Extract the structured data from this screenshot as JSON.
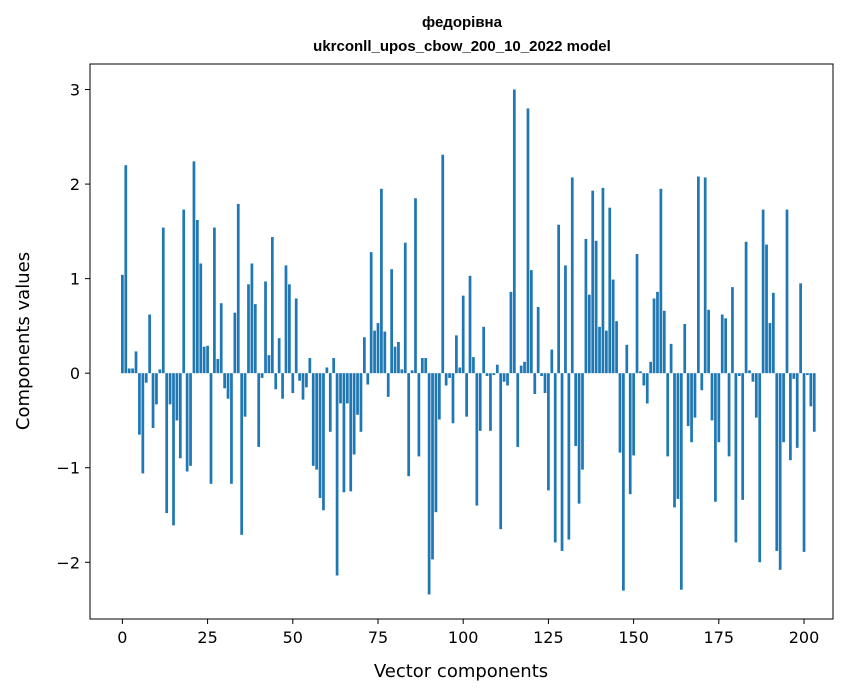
{
  "chart_data": {
    "type": "bar",
    "title_line1": "федорівна",
    "title_line2": "ukrconll_upos_cbow_200_10_2022 model",
    "xlabel": "Vector components",
    "ylabel": "Components values",
    "xlim": [
      -9.5,
      208.5
    ],
    "ylim": [
      -2.6,
      3.27
    ],
    "xticks": [
      0,
      25,
      50,
      75,
      100,
      125,
      150,
      175,
      200
    ],
    "xtick_labels": [
      "0",
      "25",
      "50",
      "75",
      "100",
      "125",
      "150",
      "175",
      "200"
    ],
    "yticks": [
      -2,
      -1,
      0,
      1,
      2,
      3
    ],
    "ytick_labels": [
      "−2",
      "−1",
      "0",
      "1",
      "2",
      "3"
    ],
    "grid": false,
    "bar_color": "#1f77b4",
    "values": [
      1.04,
      2.2,
      0.05,
      0.05,
      0.23,
      -0.65,
      -1.06,
      -0.1,
      0.62,
      -0.58,
      -0.33,
      0.04,
      1.54,
      -1.48,
      -0.33,
      -1.61,
      -0.5,
      -0.9,
      1.73,
      -1.04,
      -0.98,
      2.24,
      1.62,
      1.16,
      0.28,
      0.29,
      -1.17,
      1.54,
      0.15,
      0.74,
      -0.16,
      -0.27,
      -1.17,
      0.64,
      1.79,
      -1.71,
      -0.46,
      0.94,
      1.16,
      0.73,
      -0.78,
      -0.05,
      0.97,
      0.19,
      1.44,
      -0.17,
      0.37,
      -0.27,
      1.14,
      0.94,
      -0.21,
      0.79,
      -0.08,
      -0.28,
      -0.15,
      0.16,
      -0.98,
      -1.02,
      -1.32,
      -1.45,
      0.06,
      -0.62,
      0.16,
      -2.14,
      -0.32,
      -1.26,
      -0.32,
      -1.25,
      -0.86,
      -0.44,
      -0.62,
      0.38,
      -0.12,
      1.28,
      0.45,
      0.53,
      1.95,
      0.44,
      -0.25,
      1.1,
      0.28,
      0.33,
      0.04,
      1.38,
      -1.09,
      0.03,
      1.85,
      -0.88,
      0.16,
      0.16,
      -2.34,
      -1.97,
      -1.47,
      -0.49,
      2.31,
      -0.13,
      -0.05,
      -0.53,
      0.4,
      0.06,
      0.82,
      -0.46,
      1.03,
      0.17,
      -1.4,
      -0.61,
      0.49,
      -0.03,
      -0.61,
      -0.02,
      0.09,
      -1.65,
      -0.09,
      -0.13,
      0.86,
      3.0,
      -0.78,
      0.08,
      0.12,
      2.8,
      1.09,
      -0.22,
      0.7,
      -0.03,
      -0.21,
      -1.24,
      0.25,
      -1.79,
      1.57,
      -1.88,
      1.14,
      -1.76,
      2.07,
      -0.77,
      -1.38,
      -1.02,
      1.42,
      0.83,
      1.93,
      1.4,
      0.49,
      1.96,
      0.45,
      1.75,
      0.99,
      0.55,
      -0.84,
      -2.3,
      0.3,
      -1.28,
      -0.87,
      1.26,
      0.02,
      -0.13,
      -0.32,
      0.12,
      0.79,
      0.86,
      1.95,
      0.66,
      -0.88,
      0.31,
      -1.42,
      -1.33,
      -2.29,
      0.52,
      -0.56,
      -0.73,
      -0.47,
      2.08,
      -0.18,
      2.07,
      0.67,
      -0.5,
      -1.36,
      -0.73,
      0.62,
      0.58,
      -0.88,
      0.91,
      -1.79,
      -0.03,
      -1.34,
      1.39,
      0.03,
      -0.09,
      -0.47,
      -2.0,
      1.73,
      1.36,
      0.53,
      0.85,
      -1.88,
      -2.08,
      -0.73,
      1.73,
      -0.92,
      -0.06,
      -0.79,
      0.95,
      -1.89,
      -0.02,
      -0.35,
      -0.62
    ]
  }
}
